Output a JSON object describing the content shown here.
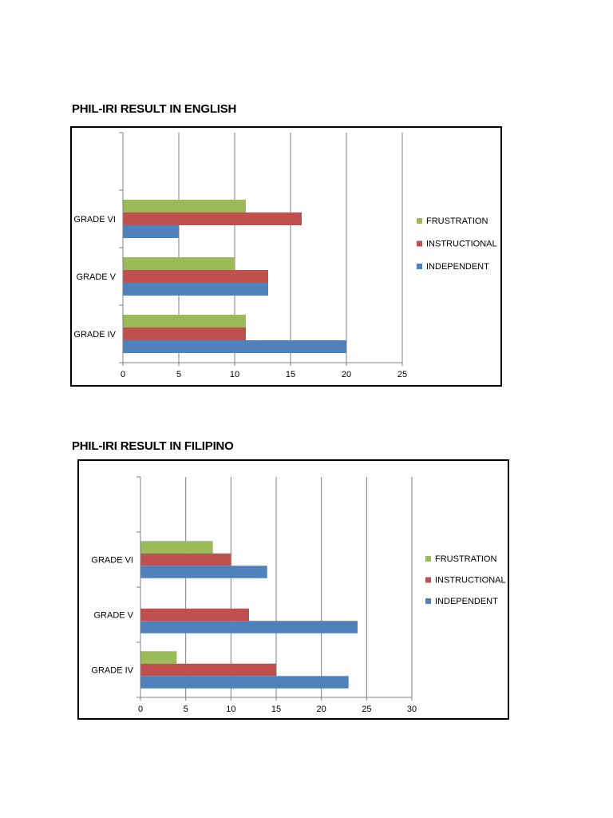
{
  "colors": {
    "frustration": "#9BBB59",
    "instructional": "#C0504D",
    "independent": "#4F81BD",
    "gridline": "#808080",
    "axis": "#808080"
  },
  "titles": {
    "english": "PHIL-IRI RESULT IN ENGLISH",
    "filipino": "PHIL-IRI RESULT IN FILIPINO"
  },
  "chart_data": [
    {
      "type": "bar",
      "orientation": "horizontal",
      "title": "PHIL-IRI RESULT IN ENGLISH",
      "categories": [
        "GRADE IV",
        "GRADE V",
        "GRADE VI"
      ],
      "series": [
        {
          "name": "FRUSTRATION",
          "values": [
            11,
            10,
            11
          ]
        },
        {
          "name": "INSTRUCTIONAL",
          "values": [
            11,
            13,
            16
          ]
        },
        {
          "name": "INDEPENDENT",
          "values": [
            20,
            13,
            5
          ]
        }
      ],
      "xlim": [
        0,
        25
      ],
      "xticks": [
        "0",
        "5",
        "10",
        "15",
        "20",
        "25"
      ],
      "grid": true,
      "legend": "right"
    },
    {
      "type": "bar",
      "orientation": "horizontal",
      "title": "PHIL-IRI RESULT IN FILIPINO",
      "categories": [
        "GRADE IV",
        "GRADE V",
        "GRADE VI"
      ],
      "series": [
        {
          "name": "FRUSTRATION",
          "values": [
            4,
            0,
            8
          ]
        },
        {
          "name": "INSTRUCTIONAL",
          "values": [
            15,
            12,
            10
          ]
        },
        {
          "name": "INDEPENDENT",
          "values": [
            23,
            24,
            14
          ]
        }
      ],
      "xlim": [
        0,
        30
      ],
      "xticks": [
        "0",
        "5",
        "10",
        "15",
        "20",
        "25",
        "30"
      ],
      "grid": true,
      "legend": "right"
    }
  ]
}
